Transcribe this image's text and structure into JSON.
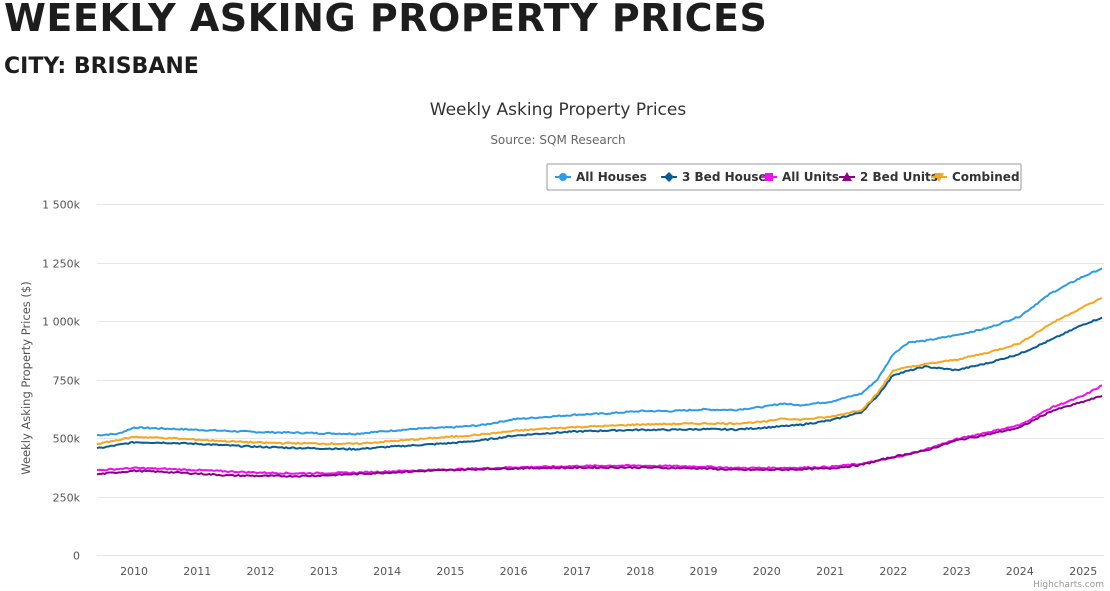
{
  "page": {
    "heading": "WEEKLY ASKING PROPERTY PRICES",
    "subheading": "CITY: BRISBANE"
  },
  "credits": "Highcharts.com",
  "chart_data": {
    "type": "line",
    "title": "Weekly Asking Property Prices",
    "subtitle": "Source: SQM Research",
    "xlabel": "",
    "ylabel": "Weekly Asking Property Prices ($)",
    "xlim": [
      "2009-06-01",
      "2025-05-01"
    ],
    "ylim": [
      0,
      1500000
    ],
    "x_tick_labels": [
      "2010",
      "2011",
      "2012",
      "2013",
      "2014",
      "2015",
      "2016",
      "2017",
      "2018",
      "2019",
      "2020",
      "2021",
      "2022",
      "2023",
      "2024",
      "2025"
    ],
    "y_ticks": [
      0,
      250000,
      500000,
      750000,
      1000000,
      1250000,
      1500000
    ],
    "y_tick_labels": [
      "0",
      "250k",
      "500k",
      "750k",
      "1 000k",
      "1 250k",
      "1 500k"
    ],
    "grid": true,
    "legend_position": "top-right",
    "series": [
      {
        "name": "All Houses",
        "color": "#2f9be5",
        "marker": "circle",
        "points": [
          [
            "2009-06-01",
            512000
          ],
          [
            "2009-10-01",
            518000
          ],
          [
            "2010-01-01",
            545000
          ],
          [
            "2010-07-01",
            540000
          ],
          [
            "2011-01-01",
            535000
          ],
          [
            "2011-07-01",
            530000
          ],
          [
            "2012-01-01",
            525000
          ],
          [
            "2012-07-01",
            523000
          ],
          [
            "2013-01-01",
            520000
          ],
          [
            "2013-07-01",
            518000
          ],
          [
            "2014-01-01",
            530000
          ],
          [
            "2014-07-01",
            540000
          ],
          [
            "2015-01-01",
            545000
          ],
          [
            "2015-07-01",
            555000
          ],
          [
            "2016-01-01",
            580000
          ],
          [
            "2016-07-01",
            590000
          ],
          [
            "2017-01-01",
            600000
          ],
          [
            "2017-07-01",
            605000
          ],
          [
            "2018-01-01",
            615000
          ],
          [
            "2018-07-01",
            615000
          ],
          [
            "2019-01-01",
            622000
          ],
          [
            "2019-07-01",
            620000
          ],
          [
            "2020-01-01",
            635000
          ],
          [
            "2020-04-01",
            648000
          ],
          [
            "2020-07-01",
            640000
          ],
          [
            "2021-01-01",
            655000
          ],
          [
            "2021-07-01",
            690000
          ],
          [
            "2021-10-01",
            750000
          ],
          [
            "2022-01-01",
            860000
          ],
          [
            "2022-04-01",
            910000
          ],
          [
            "2022-07-01",
            915000
          ],
          [
            "2023-01-01",
            940000
          ],
          [
            "2023-07-01",
            970000
          ],
          [
            "2024-01-01",
            1020000
          ],
          [
            "2024-07-01",
            1120000
          ],
          [
            "2025-01-01",
            1190000
          ],
          [
            "2025-04-20",
            1225000
          ]
        ]
      },
      {
        "name": "3 Bed Houses",
        "color": "#0a5b96",
        "marker": "diamond",
        "points": [
          [
            "2009-06-01",
            455000
          ],
          [
            "2010-01-01",
            482000
          ],
          [
            "2010-07-01",
            480000
          ],
          [
            "2011-01-01",
            475000
          ],
          [
            "2011-07-01",
            468000
          ],
          [
            "2012-01-01",
            462000
          ],
          [
            "2012-07-01",
            458000
          ],
          [
            "2013-01-01",
            455000
          ],
          [
            "2013-07-01",
            452000
          ],
          [
            "2014-01-01",
            462000
          ],
          [
            "2014-07-01",
            470000
          ],
          [
            "2015-01-01",
            478000
          ],
          [
            "2015-07-01",
            490000
          ],
          [
            "2016-01-01",
            510000
          ],
          [
            "2016-07-01",
            520000
          ],
          [
            "2017-01-01",
            528000
          ],
          [
            "2017-07-01",
            532000
          ],
          [
            "2018-01-01",
            535000
          ],
          [
            "2018-07-01",
            535000
          ],
          [
            "2019-01-01",
            538000
          ],
          [
            "2019-07-01",
            536000
          ],
          [
            "2020-01-01",
            545000
          ],
          [
            "2020-07-01",
            555000
          ],
          [
            "2021-01-01",
            575000
          ],
          [
            "2021-07-01",
            610000
          ],
          [
            "2021-10-01",
            680000
          ],
          [
            "2022-01-01",
            770000
          ],
          [
            "2022-07-01",
            805000
          ],
          [
            "2023-01-01",
            790000
          ],
          [
            "2023-07-01",
            820000
          ],
          [
            "2024-01-01",
            860000
          ],
          [
            "2024-07-01",
            920000
          ],
          [
            "2025-01-01",
            985000
          ],
          [
            "2025-04-20",
            1015000
          ]
        ]
      },
      {
        "name": "All Units",
        "color": "#ee10ee",
        "marker": "square",
        "points": [
          [
            "2009-06-01",
            362000
          ],
          [
            "2010-01-01",
            372000
          ],
          [
            "2010-07-01",
            368000
          ],
          [
            "2011-01-01",
            363000
          ],
          [
            "2011-07-01",
            357000
          ],
          [
            "2012-01-01",
            352000
          ],
          [
            "2012-07-01",
            349000
          ],
          [
            "2013-01-01",
            350000
          ],
          [
            "2013-07-01",
            352000
          ],
          [
            "2014-01-01",
            357000
          ],
          [
            "2014-07-01",
            362000
          ],
          [
            "2015-01-01",
            366000
          ],
          [
            "2015-07-01",
            370000
          ],
          [
            "2016-01-01",
            375000
          ],
          [
            "2016-07-01",
            377000
          ],
          [
            "2017-01-01",
            380000
          ],
          [
            "2017-07-01",
            382000
          ],
          [
            "2018-01-01",
            382000
          ],
          [
            "2018-07-01",
            380000
          ],
          [
            "2019-01-01",
            378000
          ],
          [
            "2019-07-01",
            372000
          ],
          [
            "2020-01-01",
            372000
          ],
          [
            "2020-07-01",
            373000
          ],
          [
            "2021-01-01",
            377000
          ],
          [
            "2021-07-01",
            390000
          ],
          [
            "2022-01-01",
            415000
          ],
          [
            "2022-07-01",
            450000
          ],
          [
            "2023-01-01",
            495000
          ],
          [
            "2023-07-01",
            525000
          ],
          [
            "2024-01-01",
            555000
          ],
          [
            "2024-07-01",
            630000
          ],
          [
            "2025-01-01",
            680000
          ],
          [
            "2025-04-20",
            725000
          ]
        ]
      },
      {
        "name": "2 Bed Units",
        "color": "#8b008b",
        "marker": "triangle",
        "points": [
          [
            "2009-06-01",
            345000
          ],
          [
            "2010-01-01",
            360000
          ],
          [
            "2010-07-01",
            355000
          ],
          [
            "2011-01-01",
            348000
          ],
          [
            "2011-07-01",
            340000
          ],
          [
            "2012-01-01",
            338000
          ],
          [
            "2012-07-01",
            337000
          ],
          [
            "2013-01-01",
            340000
          ],
          [
            "2013-07-01",
            346000
          ],
          [
            "2014-01-01",
            352000
          ],
          [
            "2014-07-01",
            358000
          ],
          [
            "2015-01-01",
            363000
          ],
          [
            "2015-07-01",
            367000
          ],
          [
            "2016-01-01",
            370000
          ],
          [
            "2016-07-01",
            372000
          ],
          [
            "2017-01-01",
            373000
          ],
          [
            "2017-07-01",
            374000
          ],
          [
            "2018-01-01",
            374000
          ],
          [
            "2018-07-01",
            372000
          ],
          [
            "2019-01-01",
            370000
          ],
          [
            "2019-07-01",
            364000
          ],
          [
            "2020-01-01",
            364000
          ],
          [
            "2020-07-01",
            366000
          ],
          [
            "2021-01-01",
            370000
          ],
          [
            "2021-07-01",
            385000
          ],
          [
            "2022-01-01",
            420000
          ],
          [
            "2022-07-01",
            445000
          ],
          [
            "2023-01-01",
            490000
          ],
          [
            "2023-07-01",
            515000
          ],
          [
            "2024-01-01",
            545000
          ],
          [
            "2024-07-01",
            615000
          ],
          [
            "2025-01-01",
            655000
          ],
          [
            "2025-04-20",
            680000
          ]
        ]
      },
      {
        "name": "Combined",
        "color": "#f5a623",
        "marker": "triangle-down",
        "points": [
          [
            "2009-06-01",
            474000
          ],
          [
            "2010-01-01",
            505000
          ],
          [
            "2010-07-01",
            500000
          ],
          [
            "2011-01-01",
            493000
          ],
          [
            "2011-07-01",
            486000
          ],
          [
            "2012-01-01",
            480000
          ],
          [
            "2012-07-01",
            478000
          ],
          [
            "2013-01-01",
            476000
          ],
          [
            "2013-07-01",
            475000
          ],
          [
            "2014-01-01",
            485000
          ],
          [
            "2014-07-01",
            495000
          ],
          [
            "2015-01-01",
            505000
          ],
          [
            "2015-07-01",
            515000
          ],
          [
            "2016-01-01",
            530000
          ],
          [
            "2016-07-01",
            540000
          ],
          [
            "2017-01-01",
            547000
          ],
          [
            "2017-07-01",
            552000
          ],
          [
            "2018-01-01",
            558000
          ],
          [
            "2018-07-01",
            560000
          ],
          [
            "2019-01-01",
            562000
          ],
          [
            "2019-07-01",
            562000
          ],
          [
            "2020-01-01",
            570000
          ],
          [
            "2020-04-01",
            585000
          ],
          [
            "2020-07-01",
            578000
          ],
          [
            "2021-01-01",
            590000
          ],
          [
            "2021-07-01",
            620000
          ],
          [
            "2021-10-01",
            690000
          ],
          [
            "2022-01-01",
            790000
          ],
          [
            "2022-07-01",
            815000
          ],
          [
            "2023-01-01",
            835000
          ],
          [
            "2023-07-01",
            865000
          ],
          [
            "2024-01-01",
            905000
          ],
          [
            "2024-07-01",
            990000
          ],
          [
            "2025-01-01",
            1060000
          ],
          [
            "2025-04-20",
            1098000
          ]
        ]
      }
    ]
  }
}
